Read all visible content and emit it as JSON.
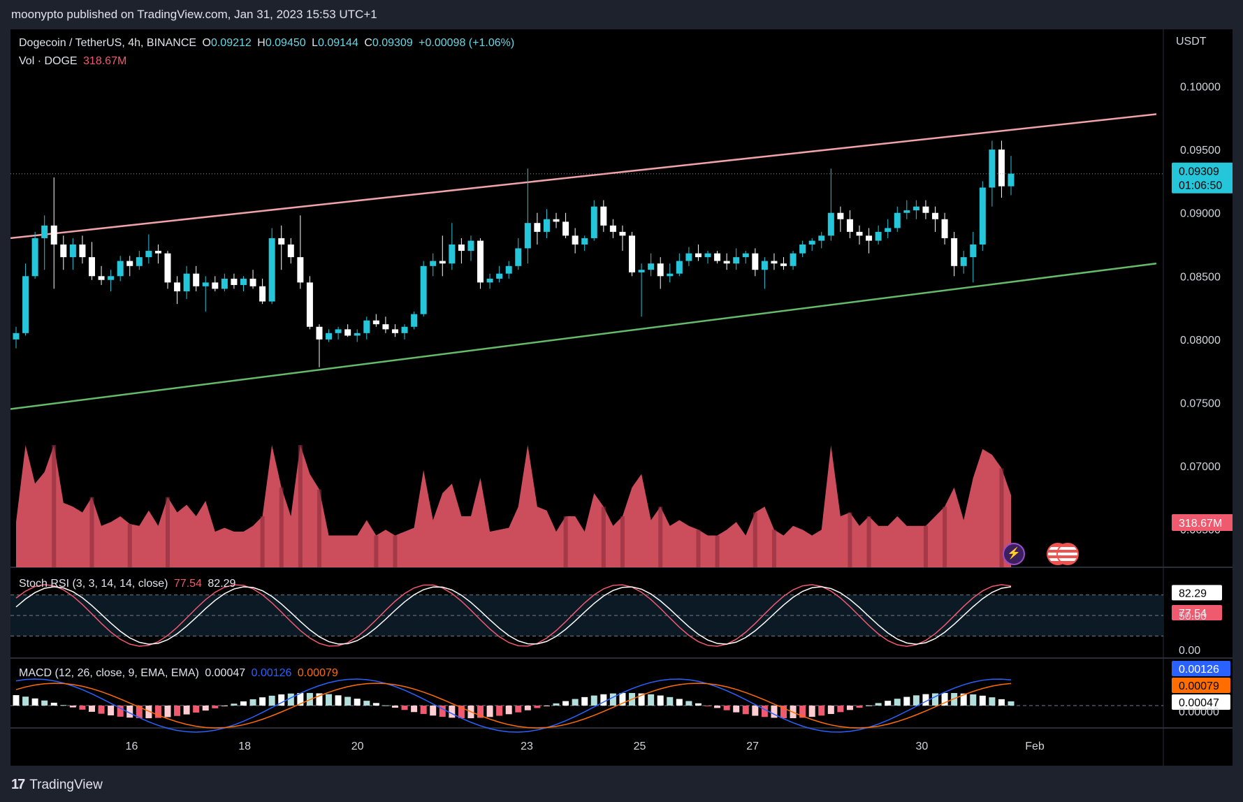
{
  "header": {
    "publisher": "moonypto published on TradingView.com, Jan 31, 2023 15:53 UTC+1"
  },
  "footer": {
    "brand": "TradingView",
    "logo": "tradingview-logo"
  },
  "legend": {
    "symbol": "Dogecoin / TetherUS, 4h, BINANCE",
    "open_label": "O",
    "open": "0.09212",
    "high_label": "H",
    "high": "0.09450",
    "low_label": "L",
    "low": "0.09144",
    "close_label": "C",
    "close": "0.09309",
    "change": "+0.00098 (+1.06%)",
    "vol_label": "Vol · DOGE",
    "vol": "318.67M"
  },
  "price_axis": {
    "currency": "USDT",
    "ticks": [
      "0.10000",
      "0.09500",
      "0.09000",
      "0.08500",
      "0.08000",
      "0.07500",
      "0.07000",
      "0.06500"
    ],
    "last_price": "0.09309",
    "countdown": "01:06:50",
    "last_volume": "318.67M"
  },
  "stoch": {
    "label": "Stoch RSI (3, 3, 14, 14, close)",
    "k": "77.54",
    "d": "82.29",
    "ticks": [
      "50.00",
      "0.00"
    ]
  },
  "macd": {
    "label": "MACD (12, 26, close, 9, EMA, EMA)",
    "hist": "0.00047",
    "macd": "0.00126",
    "signal": "0.00079",
    "ticks": [
      "0.00000"
    ]
  },
  "time_axis": {
    "labels": [
      "16",
      "18",
      "20",
      "23",
      "25",
      "27",
      "30",
      "Feb"
    ]
  },
  "colors": {
    "up": "#26c6da",
    "down": "#ffffff",
    "resistance": "#f0a3a8",
    "support": "#66bb6a",
    "vol": "#f05a6c",
    "k": "#ef5a6f",
    "d": "#ffffff",
    "macd": "#2962ff",
    "signal": "#ff6d00"
  },
  "chart_data": {
    "type": "candlestick",
    "interval": "4h",
    "y_range": [
      0.062,
      0.1045
    ],
    "x_range_days": [
      "Jan 14",
      "Feb 1"
    ],
    "candles_ohlc": [
      [
        0.08,
        0.081,
        0.0793,
        0.0805
      ],
      [
        0.0805,
        0.086,
        0.0803,
        0.085
      ],
      [
        0.085,
        0.0885,
        0.0848,
        0.088
      ],
      [
        0.088,
        0.0898,
        0.0855,
        0.089
      ],
      [
        0.089,
        0.0928,
        0.084,
        0.0875
      ],
      [
        0.0875,
        0.0882,
        0.0855,
        0.0865
      ],
      [
        0.0865,
        0.088,
        0.0855,
        0.0875
      ],
      [
        0.0875,
        0.0882,
        0.086,
        0.0865
      ],
      [
        0.0865,
        0.0877,
        0.0847,
        0.085
      ],
      [
        0.085,
        0.0858,
        0.0843,
        0.0847
      ],
      [
        0.0847,
        0.0855,
        0.0838,
        0.085
      ],
      [
        0.085,
        0.0866,
        0.0846,
        0.0862
      ],
      [
        0.0862,
        0.0866,
        0.085,
        0.0858
      ],
      [
        0.0858,
        0.087,
        0.0855,
        0.0865
      ],
      [
        0.0865,
        0.0883,
        0.086,
        0.087
      ],
      [
        0.087,
        0.0875,
        0.086,
        0.0868
      ],
      [
        0.0868,
        0.087,
        0.084,
        0.0845
      ],
      [
        0.0845,
        0.085,
        0.0828,
        0.0838
      ],
      [
        0.0838,
        0.0858,
        0.0832,
        0.0852
      ],
      [
        0.0852,
        0.0858,
        0.0838,
        0.0842
      ],
      [
        0.0842,
        0.085,
        0.0822,
        0.0845
      ],
      [
        0.0845,
        0.085,
        0.0838,
        0.084
      ],
      [
        0.084,
        0.0852,
        0.0838,
        0.0848
      ],
      [
        0.0848,
        0.0852,
        0.084,
        0.0843
      ],
      [
        0.0843,
        0.085,
        0.0838,
        0.0848
      ],
      [
        0.0848,
        0.0855,
        0.084,
        0.0842
      ],
      [
        0.0842,
        0.0848,
        0.0828,
        0.083
      ],
      [
        0.083,
        0.0888,
        0.0828,
        0.088
      ],
      [
        0.088,
        0.089,
        0.0855,
        0.0875
      ],
      [
        0.0875,
        0.088,
        0.086,
        0.0865
      ],
      [
        0.0865,
        0.0898,
        0.084,
        0.0845
      ],
      [
        0.0845,
        0.085,
        0.0808,
        0.081
      ],
      [
        0.081,
        0.0812,
        0.0778,
        0.08
      ],
      [
        0.08,
        0.0808,
        0.0798,
        0.0805
      ],
      [
        0.0805,
        0.081,
        0.08,
        0.0808
      ],
      [
        0.0808,
        0.0812,
        0.0802,
        0.0803
      ],
      [
        0.0803,
        0.0808,
        0.0798,
        0.0805
      ],
      [
        0.0805,
        0.0818,
        0.08,
        0.0815
      ],
      [
        0.0815,
        0.082,
        0.081,
        0.0812
      ],
      [
        0.0812,
        0.0818,
        0.0805,
        0.0808
      ],
      [
        0.0808,
        0.0812,
        0.0802,
        0.0805
      ],
      [
        0.0805,
        0.0812,
        0.08,
        0.081
      ],
      [
        0.081,
        0.0822,
        0.0808,
        0.082
      ],
      [
        0.082,
        0.0862,
        0.0818,
        0.0858
      ],
      [
        0.0858,
        0.0868,
        0.085,
        0.0862
      ],
      [
        0.0862,
        0.0882,
        0.085,
        0.086
      ],
      [
        0.086,
        0.0892,
        0.0855,
        0.0875
      ],
      [
        0.0875,
        0.088,
        0.086,
        0.087
      ],
      [
        0.087,
        0.0882,
        0.0862,
        0.0878
      ],
      [
        0.0878,
        0.088,
        0.084,
        0.0845
      ],
      [
        0.0845,
        0.0852,
        0.084,
        0.0848
      ],
      [
        0.0848,
        0.0858,
        0.0845,
        0.0852
      ],
      [
        0.0852,
        0.0862,
        0.0848,
        0.0858
      ],
      [
        0.0858,
        0.088,
        0.0855,
        0.0872
      ],
      [
        0.0872,
        0.0935,
        0.086,
        0.0892
      ],
      [
        0.0892,
        0.09,
        0.0875,
        0.0885
      ],
      [
        0.0885,
        0.0903,
        0.088,
        0.0895
      ],
      [
        0.0895,
        0.09,
        0.0888,
        0.0893
      ],
      [
        0.0893,
        0.09,
        0.088,
        0.0882
      ],
      [
        0.0882,
        0.0888,
        0.0868,
        0.0875
      ],
      [
        0.0875,
        0.0882,
        0.087,
        0.088
      ],
      [
        0.088,
        0.091,
        0.0878,
        0.0905
      ],
      [
        0.0905,
        0.091,
        0.0885,
        0.089
      ],
      [
        0.089,
        0.0895,
        0.088,
        0.0885
      ],
      [
        0.0885,
        0.089,
        0.087,
        0.0882
      ],
      [
        0.0882,
        0.0885,
        0.085,
        0.0853
      ],
      [
        0.0853,
        0.086,
        0.0818,
        0.0855
      ],
      [
        0.0855,
        0.0868,
        0.085,
        0.086
      ],
      [
        0.086,
        0.0865,
        0.084,
        0.085
      ],
      [
        0.085,
        0.086,
        0.0845,
        0.0852
      ],
      [
        0.0852,
        0.0868,
        0.085,
        0.0862
      ],
      [
        0.0862,
        0.0873,
        0.0858,
        0.0868
      ],
      [
        0.0868,
        0.0875,
        0.0862,
        0.0865
      ],
      [
        0.0865,
        0.087,
        0.086,
        0.0868
      ],
      [
        0.0868,
        0.087,
        0.086,
        0.0862
      ],
      [
        0.0862,
        0.0868,
        0.0855,
        0.086
      ],
      [
        0.086,
        0.0872,
        0.0855,
        0.0865
      ],
      [
        0.0865,
        0.087,
        0.086,
        0.0868
      ],
      [
        0.0868,
        0.0872,
        0.085,
        0.0855
      ],
      [
        0.0855,
        0.0865,
        0.084,
        0.0862
      ],
      [
        0.0862,
        0.0868,
        0.0855,
        0.086
      ],
      [
        0.086,
        0.0865,
        0.0855,
        0.0858
      ],
      [
        0.0858,
        0.087,
        0.0855,
        0.0868
      ],
      [
        0.0868,
        0.0878,
        0.0865,
        0.0875
      ],
      [
        0.0875,
        0.088,
        0.087,
        0.0878
      ],
      [
        0.0878,
        0.0885,
        0.0872,
        0.0882
      ],
      [
        0.0882,
        0.0935,
        0.0878,
        0.09
      ],
      [
        0.09,
        0.0905,
        0.0885,
        0.0895
      ],
      [
        0.0895,
        0.0902,
        0.088,
        0.0885
      ],
      [
        0.0885,
        0.089,
        0.0875,
        0.0882
      ],
      [
        0.0882,
        0.0888,
        0.0868,
        0.0878
      ],
      [
        0.0878,
        0.089,
        0.0875,
        0.0885
      ],
      [
        0.0885,
        0.0895,
        0.088,
        0.0888
      ],
      [
        0.0888,
        0.0905,
        0.0885,
        0.09
      ],
      [
        0.09,
        0.091,
        0.0895,
        0.0902
      ],
      [
        0.0902,
        0.091,
        0.0895,
        0.0905
      ],
      [
        0.0905,
        0.091,
        0.0895,
        0.09
      ],
      [
        0.09,
        0.0905,
        0.0885,
        0.0895
      ],
      [
        0.0895,
        0.09,
        0.0875,
        0.088
      ],
      [
        0.088,
        0.0885,
        0.085,
        0.0858
      ],
      [
        0.0858,
        0.087,
        0.0852,
        0.0865
      ],
      [
        0.0865,
        0.0885,
        0.0845,
        0.0875
      ],
      [
        0.0875,
        0.0925,
        0.087,
        0.092
      ],
      [
        0.092,
        0.0957,
        0.0905,
        0.095
      ],
      [
        0.095,
        0.0957,
        0.0912,
        0.0921
      ],
      [
        0.0921,
        0.0945,
        0.0914,
        0.0931
      ]
    ],
    "resistance_line": {
      "from": [
        "Jan 14",
        0.088
      ],
      "to": [
        "Feb 1",
        0.0978
      ]
    },
    "support_line": {
      "from": [
        "Jan 14",
        0.0745
      ],
      "to": [
        "Feb 1",
        0.086
      ]
    },
    "last_volume_M": 318.67
  }
}
